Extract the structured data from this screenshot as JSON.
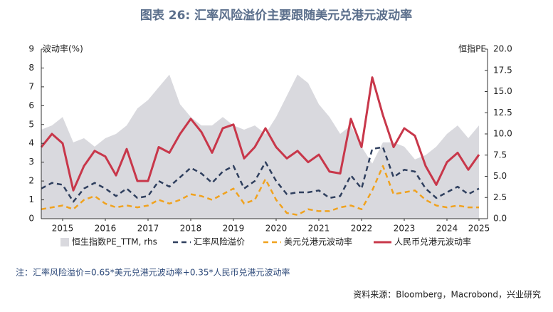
{
  "chart_data": {
    "type": "line",
    "title": "图表 26: 汇率风险溢价主要跟随美元兑港元波动率",
    "y_label": "波动率(%)",
    "y2_label": "恒指PE",
    "note": "注：汇率风险溢价=0.65*美元兑港元波动率+0.35*人民币兑港元波动率",
    "source": "资料来源：Bloomberg，Macrobond，兴业研究",
    "x": [
      2015,
      2015.25,
      2015.5,
      2015.75,
      2016,
      2016.25,
      2016.5,
      2016.75,
      2017,
      2017.25,
      2017.5,
      2017.75,
      2018,
      2018.25,
      2018.5,
      2018.75,
      2019,
      2019.25,
      2019.5,
      2019.75,
      2020,
      2020.25,
      2020.5,
      2020.75,
      2021,
      2021.25,
      2021.5,
      2021.75,
      2022,
      2022.25,
      2022.5,
      2022.75,
      2023,
      2023.25,
      2023.5,
      2023.75,
      2024,
      2024.25,
      2024.5,
      2024.75,
      2025,
      2025.25
    ],
    "xlim": [
      2015,
      2025.45
    ],
    "xticks": [
      {
        "value": 2015.5,
        "label": "2015"
      },
      {
        "value": 2016.5,
        "label": "2016"
      },
      {
        "value": 2017.5,
        "label": "2017"
      },
      {
        "value": 2018.5,
        "label": "2018"
      },
      {
        "value": 2019.5,
        "label": "2019"
      },
      {
        "value": 2020.5,
        "label": "2020"
      },
      {
        "value": 2021.5,
        "label": "2021"
      },
      {
        "value": 2022.5,
        "label": "2022"
      },
      {
        "value": 2023.5,
        "label": "2023"
      },
      {
        "value": 2024.5,
        "label": "2024"
      },
      {
        "value": 2025.25,
        "label": "2025"
      }
    ],
    "ylim": [
      0,
      9
    ],
    "yticks": [
      0,
      1,
      2,
      3,
      4,
      5,
      6,
      7,
      8,
      9
    ],
    "y2lim": [
      0,
      20
    ],
    "y2ticks": [
      {
        "value": 0,
        "label": "0.0"
      },
      2.5,
      {
        "value": 5,
        "label": "5.0"
      },
      7.5,
      {
        "value": 10,
        "label": "10.0"
      },
      12.5,
      {
        "value": 15,
        "label": "15.0"
      },
      17.5,
      {
        "value": 20,
        "label": "20.0"
      }
    ],
    "series": [
      {
        "name": "恒生指数PE_TTM, rhs",
        "color": "#d9d9de",
        "style": "area",
        "axis": "y2",
        "values": [
          10.5,
          11,
          12,
          9,
          9.5,
          8.5,
          9.5,
          10,
          11,
          13,
          14,
          15.5,
          17,
          13.5,
          12,
          11,
          11,
          12,
          11,
          10.5,
          11,
          10,
          12,
          14.5,
          17,
          16,
          13.5,
          12,
          10,
          11,
          8.5,
          6.5,
          9,
          9,
          8.5,
          7,
          7.5,
          8.5,
          10,
          11,
          9.5,
          11
        ]
      },
      {
        "name": "汇率风险溢价",
        "color": "#2f3f5e",
        "style": "dashed",
        "values": [
          1.6,
          1.9,
          1.8,
          0.9,
          1.6,
          1.9,
          1.6,
          1.2,
          1.6,
          1.1,
          1.2,
          2.0,
          1.7,
          2.2,
          2.7,
          2.4,
          1.9,
          2.5,
          2.8,
          1.6,
          2.0,
          3.0,
          2.0,
          1.3,
          1.4,
          1.4,
          1.5,
          1.1,
          1.2,
          2.3,
          1.6,
          3.7,
          3.8,
          2.2,
          2.6,
          2.5,
          1.6,
          1.1,
          1.4,
          1.7,
          1.3,
          1.6
        ]
      },
      {
        "name": "美元兑港元波动率",
        "color": "#f0a21e",
        "style": "dashed",
        "values": [
          0.5,
          0.6,
          0.7,
          0.5,
          1.0,
          1.2,
          0.8,
          0.6,
          0.7,
          0.6,
          0.7,
          1.0,
          0.8,
          1.0,
          1.3,
          1.2,
          1.0,
          1.3,
          1.6,
          0.8,
          1.0,
          2.1,
          1.0,
          0.3,
          0.2,
          0.5,
          0.4,
          0.4,
          0.6,
          0.7,
          0.5,
          1.5,
          2.8,
          1.3,
          1.4,
          1.5,
          1.0,
          0.7,
          0.6,
          0.7,
          0.6,
          0.6
        ]
      },
      {
        "name": "人民币兑港元波动率",
        "color": "#c8374a",
        "style": "solid",
        "values": [
          3.8,
          4.5,
          4.0,
          1.5,
          2.8,
          3.6,
          3.3,
          2.3,
          3.7,
          2.0,
          2.0,
          3.8,
          3.5,
          4.5,
          5.3,
          4.6,
          3.5,
          4.8,
          5.0,
          3.2,
          3.8,
          4.8,
          3.8,
          3.2,
          3.6,
          3.0,
          3.4,
          2.5,
          2.4,
          5.3,
          3.8,
          7.5,
          5.5,
          3.8,
          4.8,
          4.4,
          2.8,
          1.8,
          3.0,
          3.5,
          2.6,
          3.4
        ]
      }
    ]
  }
}
